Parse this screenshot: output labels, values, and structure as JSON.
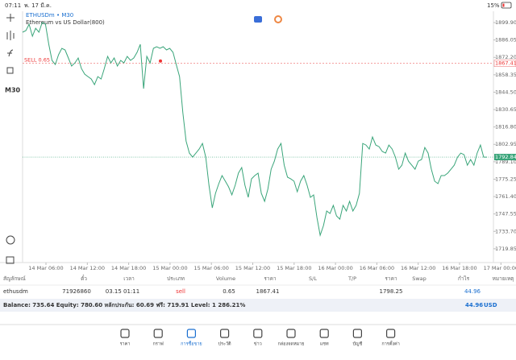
{
  "status": {
    "time": "07:11",
    "date": "พ. 17 มี.ค.",
    "battery": "15%"
  },
  "toolbar": {
    "timeframe": "M30"
  },
  "chart": {
    "type": "line",
    "symbol": "ETHUSDm • M30",
    "description": "Ethereum vs US Dollar(800)",
    "color": "#3aa57a",
    "order_label": "SELL 0.65",
    "order_price": 1867.41,
    "current_price": 1792.84,
    "ylim": [
      1709.5,
      1908.9
    ],
    "yticks": [
      {
        "value": 1899.9,
        "label": "1899.90"
      },
      1886.05,
      {
        "value": 1872.2,
        "label": "1872.20"
      },
      1858.35,
      {
        "value": 1844.5,
        "label": "1844.50"
      },
      1830.65,
      {
        "value": 1816.8,
        "label": "1816.80"
      },
      1802.95,
      {
        "value": 1789.1,
        "label": "1789.10"
      },
      1775.25,
      {
        "value": 1761.4,
        "label": "1761.40"
      },
      1747.55,
      {
        "value": 1733.7,
        "label": "1733.70"
      },
      1719.85
    ],
    "xticks": [
      "14 Mar 06:00",
      "14 Mar 12:00",
      "14 Mar 18:00",
      "15 Mar 00:00",
      "15 Mar 06:00",
      "15 Mar 12:00",
      "15 Mar 18:00",
      "16 Mar 00:00",
      "16 Mar 06:00",
      "16 Mar 12:00",
      "16 Mar 18:00",
      "17 Mar 00:00"
    ],
    "values": [
      1892.2,
      1893.5,
      1898.6,
      1889.0,
      1895.4,
      1892.2,
      1899.9,
      1898.6,
      1882.6,
      1869.8,
      1866.5,
      1874.3,
      1879.4,
      1878.1,
      1871.7,
      1865.3,
      1867.8,
      1871.7,
      1863.3,
      1858.8,
      1856.9,
      1855.0,
      1850.5,
      1856.9,
      1855.0,
      1863.3,
      1873.0,
      1867.8,
      1871.7,
      1865.3,
      1869.8,
      1867.8,
      1873.0,
      1869.8,
      1871.7,
      1876.2,
      1882.6,
      1847.3,
      1873.0,
      1867.8,
      1879.4,
      1880.7,
      1879.4,
      1880.7,
      1878.1,
      1879.4,
      1876.2,
      1866.5,
      1856.9,
      1828.1,
      1805.6,
      1796.0,
      1792.8,
      1796.0,
      1799.2,
      1803.7,
      1792.8,
      1770.4,
      1752.4,
      1764.0,
      1771.7,
      1778.1,
      1773.6,
      1769.1,
      1762.7,
      1770.4,
      1780.0,
      1784.5,
      1770.4,
      1760.8,
      1775.5,
      1778.1,
      1780.0,
      1764.0,
      1757.6,
      1767.2,
      1783.2,
      1789.6,
      1799.2,
      1803.7,
      1786.4,
      1776.8,
      1775.5,
      1773.6,
      1765.2,
      1773.6,
      1778.1,
      1770.4,
      1760.8,
      1762.7,
      1744.7,
      1730.6,
      1738.3,
      1749.9,
      1747.9,
      1754.4,
      1746.0,
      1743.4,
      1754.4,
      1749.9,
      1757.6,
      1749.9,
      1754.4,
      1764.0,
      1803.7,
      1802.4,
      1799.2,
      1808.8,
      1802.4,
      1801.1,
      1797.3,
      1796.0,
      1802.4,
      1799.2,
      1792.8,
      1783.2,
      1786.4,
      1796.0,
      1789.6,
      1786.4,
      1783.2,
      1789.6,
      1790.9,
      1800.5,
      1796.0,
      1783.2,
      1773.6,
      1771.7,
      1778.1,
      1778.1,
      1780.0,
      1783.2,
      1786.4,
      1792.8,
      1796.0,
      1794.7,
      1786.4,
      1790.9,
      1786.4,
      1796.0,
      1802.4,
      1792.8,
      1792.8
    ]
  },
  "table": {
    "headers": [
      "สัญลักษณ์",
      "ตั๋ว",
      "เวลา",
      "ประเภท",
      "Volume",
      "ราคา",
      "S/L",
      "T/P",
      "ราคา",
      "Swap",
      "กำไร",
      "หมายเหตุ"
    ],
    "row": [
      "ethusdm",
      "71926860",
      "03.15 01:11",
      "sell",
      "0.65",
      "1867.41",
      "",
      "",
      "1798.25",
      "",
      "44.96",
      ""
    ]
  },
  "balance": {
    "text": "Balance: 735.64 Equity: 780.60 หลักประกัน: 60.69 ฟรี: 719.91 Level: 1 286.21%",
    "profit": "44.96",
    "currency": "USD"
  },
  "nav": {
    "items": [
      "ราคา",
      "กราฟ",
      "การซื้อขาย",
      "ประวัติ",
      "ข่าว",
      "กล่องจดหมาย",
      "แชท",
      "บัญชี",
      "การตั้งค่า"
    ],
    "active": 2
  }
}
